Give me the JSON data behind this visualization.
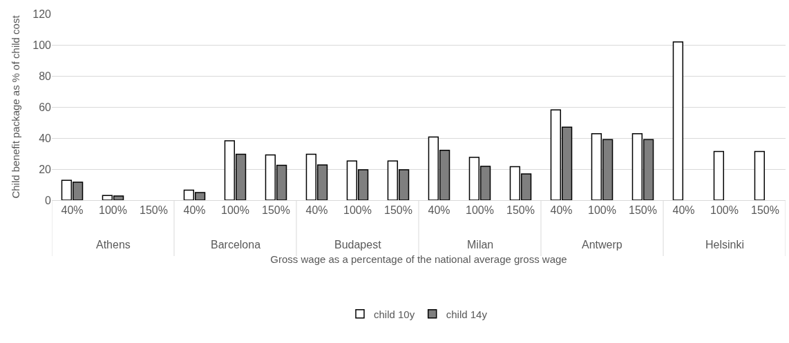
{
  "chart_data": {
    "type": "bar",
    "xlabel": "Gross wage as a percentage of the national average gross wage",
    "ylabel": "Child benefit package as % of child cost",
    "categories": [
      "40%",
      "100%",
      "150%",
      "40%",
      "100%",
      "150%",
      "40%",
      "100%",
      "150%",
      "40%",
      "100%",
      "150%",
      "40%",
      "100%",
      "150%",
      "40%",
      "100%",
      "150%"
    ],
    "annotations": [
      "Athens",
      "Barcelona",
      "Budapest",
      "Milan",
      "Antwerp",
      "Helsinki"
    ],
    "series": [
      {
        "name": "child 10y",
        "color": "#ffffff",
        "values": [
          12.8,
          3.0,
          null,
          6.4,
          38.2,
          29.1,
          29.6,
          25.2,
          25.2,
          40.7,
          27.6,
          21.6,
          58.1,
          42.8,
          42.8,
          101.9,
          31.3,
          31.3
        ]
      },
      {
        "name": "child 14y",
        "color": "#7f7f7f",
        "values": [
          11.6,
          2.7,
          null,
          4.9,
          29.6,
          22.4,
          22.7,
          19.6,
          19.6,
          32.1,
          21.8,
          16.9,
          47.0,
          39.0,
          39.0,
          null,
          null,
          null
        ]
      }
    ],
    "ylim": [
      0,
      120
    ],
    "yticks": [
      0,
      20,
      40,
      60,
      80,
      100,
      120
    ],
    "grid": "y",
    "legend": "bottom"
  }
}
